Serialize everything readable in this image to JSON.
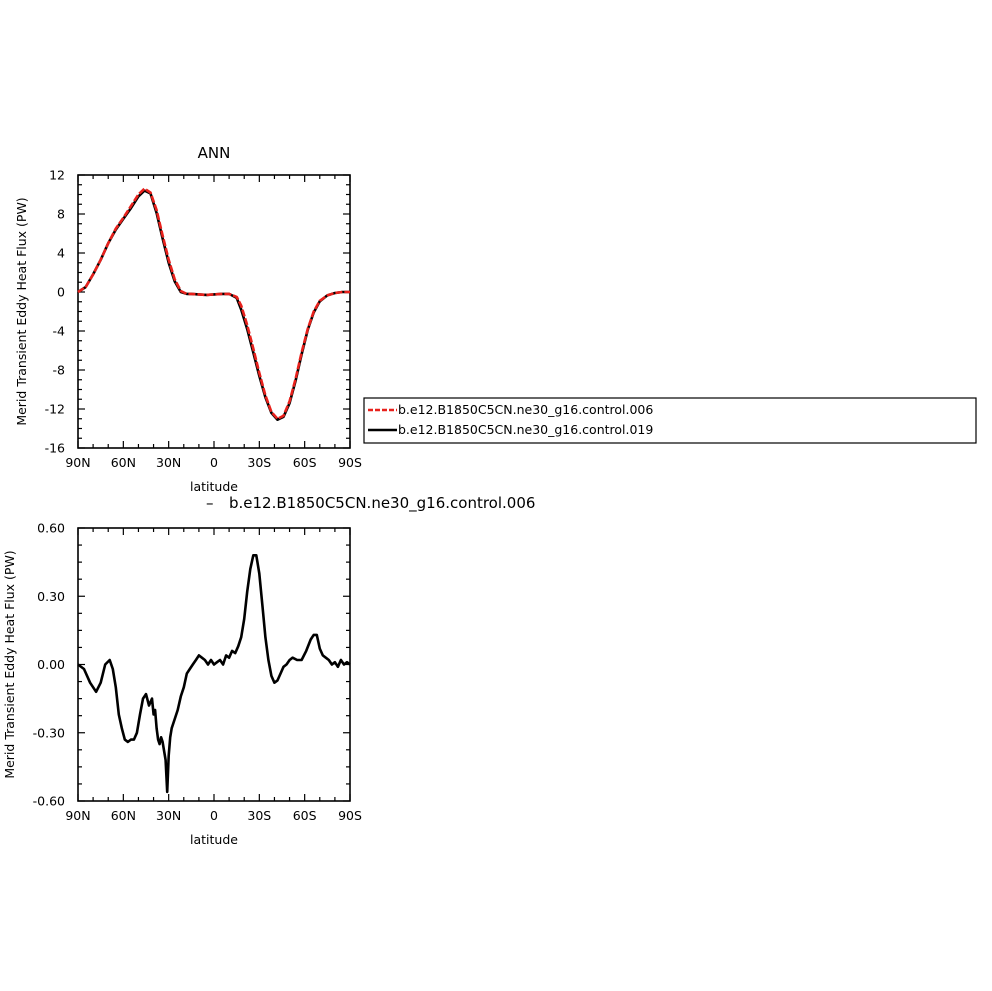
{
  "chart_data": [
    {
      "type": "line",
      "title": "ANN",
      "xlabel": "latitude",
      "ylabel": "Merid Transient Eddy Heat Flux (PW)",
      "x_ticks": [
        "90N",
        "60N",
        "30N",
        "0",
        "30S",
        "60S",
        "90S"
      ],
      "x_range": [
        90,
        -90
      ],
      "ylim": [
        -16,
        12
      ],
      "y_ticks": [
        "12",
        "8",
        "4",
        "0",
        "-4",
        "-8",
        "-12",
        "-16"
      ],
      "grid": false,
      "legend_position": "right",
      "series": [
        {
          "name": "b.e12.B1850C5CN.ne30_g16.control.006",
          "color": "#e8211c",
          "style": "dashed",
          "x": [
            90,
            85,
            80,
            75,
            70,
            65,
            60,
            55,
            50,
            46,
            42,
            38,
            34,
            30,
            26,
            22,
            18,
            15,
            10,
            5,
            0,
            -5,
            -10,
            -15,
            -18,
            -22,
            -26,
            -30,
            -34,
            -38,
            -42,
            -46,
            -50,
            -54,
            -58,
            -62,
            -66,
            -70,
            -75,
            -80,
            -85,
            -90
          ],
          "y": [
            0,
            0.5,
            1.8,
            3.3,
            5,
            6.5,
            7.6,
            8.8,
            10,
            10.6,
            10.2,
            8.4,
            5.8,
            3.3,
            1.3,
            0.1,
            -0.2,
            -0.2,
            -0.25,
            -0.3,
            -0.25,
            -0.2,
            -0.2,
            -0.5,
            -1.4,
            -3.4,
            -5.8,
            -8.3,
            -10.6,
            -12.3,
            -13,
            -12.7,
            -11.2,
            -8.9,
            -6.2,
            -3.8,
            -2,
            -0.9,
            -0.35,
            -0.1,
            0,
            0
          ]
        },
        {
          "name": "b.e12.B1850C5CN.ne30_g16.control.019",
          "color": "#000000",
          "style": "solid",
          "x": [
            90,
            85,
            80,
            75,
            70,
            65,
            60,
            55,
            50,
            46,
            42,
            38,
            34,
            30,
            26,
            22,
            18,
            15,
            10,
            5,
            0,
            -5,
            -10,
            -15,
            -18,
            -22,
            -26,
            -30,
            -34,
            -38,
            -42,
            -46,
            -50,
            -54,
            -58,
            -62,
            -66,
            -70,
            -75,
            -80,
            -85,
            -90
          ],
          "y": [
            0,
            0.5,
            1.8,
            3.3,
            5,
            6.4,
            7.5,
            8.6,
            9.8,
            10.4,
            10.1,
            8.1,
            5.5,
            3,
            1.1,
            0,
            -0.2,
            -0.2,
            -0.25,
            -0.3,
            -0.25,
            -0.2,
            -0.2,
            -0.6,
            -1.8,
            -3.8,
            -6.2,
            -8.6,
            -10.8,
            -12.4,
            -13.1,
            -12.8,
            -11.4,
            -9.1,
            -6.4,
            -3.9,
            -2.1,
            -0.95,
            -0.35,
            -0.1,
            0,
            0
          ]
        }
      ]
    },
    {
      "type": "line",
      "title": "b.e12.B1850C5CN.ne30_g16.control.006",
      "title_marker": "–",
      "xlabel": "latitude",
      "ylabel": "Merid Transient Eddy Heat Flux (PW)",
      "x_ticks": [
        "90N",
        "60N",
        "30N",
        "0",
        "30S",
        "60S",
        "90S"
      ],
      "x_range": [
        90,
        -90
      ],
      "ylim": [
        -0.6,
        0.6
      ],
      "y_ticks": [
        "0.60",
        "0.30",
        "0.00",
        "-0.30",
        "-0.60"
      ],
      "grid": false,
      "series": [
        {
          "color": "#000000",
          "style": "solid",
          "x": [
            90,
            86,
            82,
            78,
            75,
            72,
            69,
            67,
            65,
            63,
            61,
            59,
            57,
            55,
            53,
            51,
            49,
            47,
            45,
            43,
            41,
            40,
            39,
            38,
            37,
            36,
            35,
            34,
            33,
            32,
            31,
            30,
            29,
            28,
            26,
            24,
            22,
            20,
            18,
            16,
            14,
            12,
            10,
            8,
            6,
            4,
            2,
            0,
            -2,
            -4,
            -6,
            -8,
            -10,
            -12,
            -14,
            -16,
            -18,
            -20,
            -22,
            -24,
            -26,
            -28,
            -30,
            -32,
            -34,
            -36,
            -38,
            -40,
            -42,
            -44,
            -46,
            -48,
            -50,
            -52,
            -55,
            -58,
            -61,
            -64,
            -66,
            -68,
            -70,
            -72,
            -74,
            -76,
            -78,
            -80,
            -82,
            -84,
            -86,
            -88,
            -90
          ],
          "y": [
            0,
            -0.02,
            -0.08,
            -0.12,
            -0.08,
            0,
            0.02,
            -0.02,
            -0.1,
            -0.22,
            -0.28,
            -0.33,
            -0.34,
            -0.33,
            -0.33,
            -0.3,
            -0.22,
            -0.15,
            -0.13,
            -0.18,
            -0.15,
            -0.22,
            -0.2,
            -0.28,
            -0.33,
            -0.35,
            -0.32,
            -0.34,
            -0.38,
            -0.42,
            -0.56,
            -0.4,
            -0.32,
            -0.28,
            -0.24,
            -0.2,
            -0.14,
            -0.1,
            -0.04,
            -0.02,
            0,
            0.02,
            0.04,
            0.03,
            0.02,
            0,
            0.02,
            0,
            0.01,
            0.02,
            0,
            0.04,
            0.03,
            0.06,
            0.05,
            0.08,
            0.12,
            0.2,
            0.32,
            0.42,
            0.48,
            0.48,
            0.4,
            0.26,
            0.12,
            0.02,
            -0.05,
            -0.08,
            -0.07,
            -0.04,
            -0.01,
            0,
            0.02,
            0.03,
            0.02,
            0.02,
            0.06,
            0.11,
            0.13,
            0.13,
            0.07,
            0.04,
            0.03,
            0.02,
            0.0,
            0.01,
            -0.01,
            0.02,
            0.0,
            0.01,
            0.0
          ]
        }
      ]
    }
  ]
}
